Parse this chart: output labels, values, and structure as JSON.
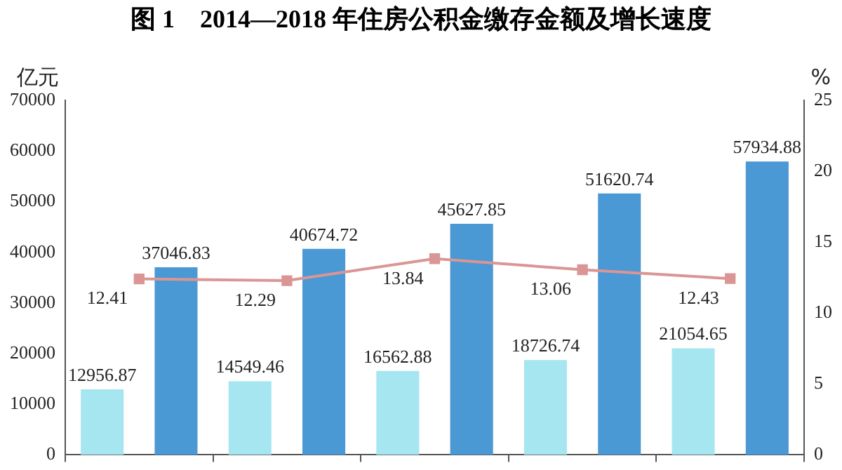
{
  "chart_data": {
    "type": "bar",
    "title": "图 1　2014—2018 年住房公积金缴存金额及增长速度",
    "ylabel": "亿元",
    "y2label": "%",
    "categories": [
      null,
      null,
      null,
      null,
      null
    ],
    "series": [
      {
        "color": "#a6e6f0",
        "values": [
          12956.87,
          14549.46,
          16562.88,
          18726.74,
          21054.65
        ]
      },
      {
        "color": "#4a98d4",
        "values": [
          37046.83,
          40674.72,
          45627.85,
          51620.74,
          57934.88
        ]
      },
      {
        "type": "line",
        "axis": "y2",
        "color": "#d99694",
        "marker": "square",
        "values": [
          12.41,
          12.29,
          13.84,
          13.06,
          12.43
        ]
      }
    ],
    "ylim": [
      0,
      70000
    ],
    "yticks": [
      0,
      10000,
      20000,
      30000,
      40000,
      50000,
      60000,
      70000
    ],
    "y2lim": [
      0,
      25
    ],
    "y2ticks": [
      0,
      5,
      10,
      15,
      20,
      25
    ],
    "data_labels": true,
    "grid": false,
    "legend": false
  }
}
